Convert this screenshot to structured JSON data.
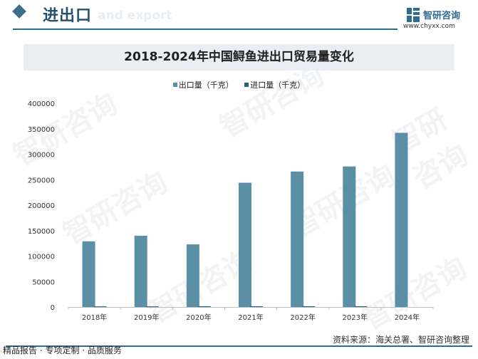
{
  "header": {
    "title": "进出口",
    "subtitle": "and export",
    "logo_name": "智研咨询",
    "logo_url": "www.chyxx.com"
  },
  "watermark_text": "智研咨询",
  "chart_data": {
    "type": "bar",
    "title": "2018-2024年中国鲟鱼进出口贸易量变化",
    "categories": [
      "2018年",
      "2019年",
      "2020年",
      "2021年",
      "2022年",
      "2023年",
      "2024年"
    ],
    "series": [
      {
        "name": "出口量（千克）",
        "color": "#5b8fa6",
        "values": [
          129000,
          140000,
          123000,
          244000,
          266000,
          276000,
          342000
        ]
      },
      {
        "name": "进口量（千克）",
        "color": "#2a5f78",
        "values": [
          1200,
          1200,
          1500,
          1500,
          1500,
          1500,
          0
        ]
      }
    ],
    "ylim": [
      0,
      400000
    ],
    "yticks": [
      0,
      50000,
      100000,
      150000,
      200000,
      250000,
      300000,
      350000,
      400000
    ],
    "xlabel": "",
    "ylabel": "",
    "grid": false,
    "legend_position": "top-center"
  },
  "footer": {
    "source": "资料来源：海关总署、智研咨询整理",
    "slogan": "精品报告 · 专项定制 · 品质服务"
  }
}
